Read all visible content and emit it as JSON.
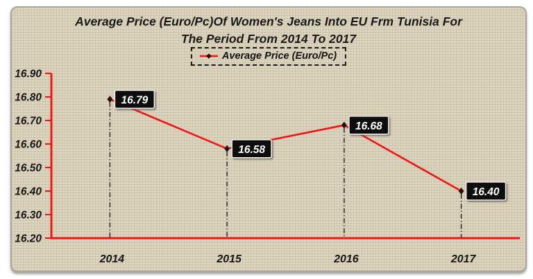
{
  "chart_data": {
    "type": "line",
    "title": "Average Price (Euro/Pc)Of Women's Jeans Into EU Frm Tunisia For The Period From 2014 To 2017",
    "title_lines": [
      "Average Price (Euro/Pc)Of Women's Jeans Into EU Frm Tunisia For",
      "The Period From 2014 To 2017"
    ],
    "legend": {
      "label": "Average Price (Euro/Pc)",
      "position": "top-center"
    },
    "categories": [
      "2014",
      "2015",
      "2016",
      "2017"
    ],
    "series": [
      {
        "name": "Average Price (Euro/Pc)",
        "values": [
          16.79,
          16.58,
          16.68,
          16.4
        ]
      }
    ],
    "data_labels": [
      "16.79",
      "16.58",
      "16.68",
      "16.40"
    ],
    "y_axis": {
      "min": 16.2,
      "max": 16.9,
      "step": 0.1,
      "tick_labels": [
        "16.90",
        "16.80",
        "16.70",
        "16.60",
        "16.50",
        "16.40",
        "16.30",
        "16.20"
      ]
    },
    "xlabel": "",
    "ylabel": "",
    "grid": "off",
    "drop_lines": "vertical dash-dot from each point to x-axis",
    "colors": {
      "line": "#f61313",
      "axis": "#f61313",
      "marker": "#2a100a",
      "drop_line": "#2b2b2b",
      "label_bg": "#070707",
      "label_border": "#ededed",
      "label_text": "#ffffff",
      "background": "#ddd4be",
      "text": "#191919"
    }
  }
}
